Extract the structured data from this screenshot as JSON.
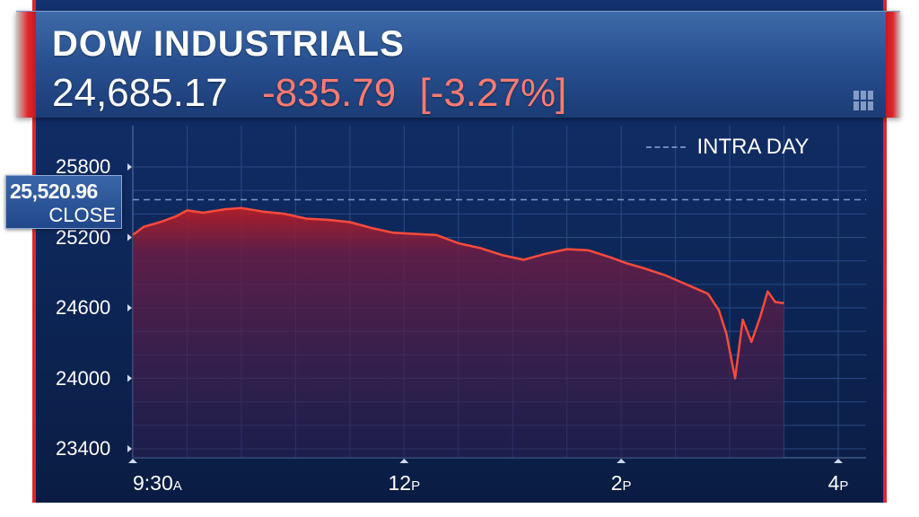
{
  "header": {
    "title": "DOW INDUSTRIALS",
    "price": "24,685.17",
    "change": "-835.79",
    "percent": "[-3.27%]"
  },
  "close_tag": {
    "value": "25,520.96",
    "label": "CLOSE"
  },
  "legend": {
    "label": "INTRA DAY"
  },
  "colors": {
    "line": "#ff4a3a",
    "fill_top": "#b51e26",
    "background": "#0d2657",
    "accent": "#e0262b"
  },
  "chart_data": {
    "type": "line",
    "title": "DOW INDUSTRIALS",
    "xlabel": "",
    "ylabel": "",
    "ylim": [
      23400,
      26000
    ],
    "xlim": [
      9.5,
      16.0
    ],
    "yticks": [
      25800,
      25200,
      24600,
      24000,
      23400
    ],
    "xticks": [
      {
        "value": 9.5,
        "main": "9:30",
        "suffix": "A"
      },
      {
        "value": 12.0,
        "main": "12",
        "suffix": "P"
      },
      {
        "value": 14.0,
        "main": "2",
        "suffix": "P"
      },
      {
        "value": 16.0,
        "main": "4",
        "suffix": "P"
      }
    ],
    "reference_line": {
      "label": "CLOSE",
      "value": 25520.96
    },
    "grid": true,
    "legend_position": "top-right",
    "series": [
      {
        "name": "INTRA DAY",
        "x": [
          9.5,
          9.6,
          9.75,
          9.9,
          10.0,
          10.15,
          10.35,
          10.5,
          10.7,
          10.9,
          11.1,
          11.3,
          11.5,
          11.7,
          11.9,
          12.1,
          12.3,
          12.5,
          12.7,
          12.9,
          13.1,
          13.3,
          13.5,
          13.7,
          13.9,
          14.05,
          14.2,
          14.4,
          14.6,
          14.8,
          14.9,
          14.97,
          15.05,
          15.12,
          15.2,
          15.28,
          15.35,
          15.42,
          15.5
        ],
        "y": [
          25220,
          25290,
          25330,
          25380,
          25430,
          25410,
          25440,
          25450,
          25420,
          25400,
          25360,
          25350,
          25330,
          25280,
          25240,
          25230,
          25220,
          25150,
          25110,
          25050,
          25010,
          25060,
          25100,
          25090,
          25030,
          24980,
          24940,
          24880,
          24800,
          24720,
          24580,
          24380,
          24000,
          24500,
          24310,
          24520,
          24740,
          24650,
          24640
        ]
      }
    ]
  }
}
